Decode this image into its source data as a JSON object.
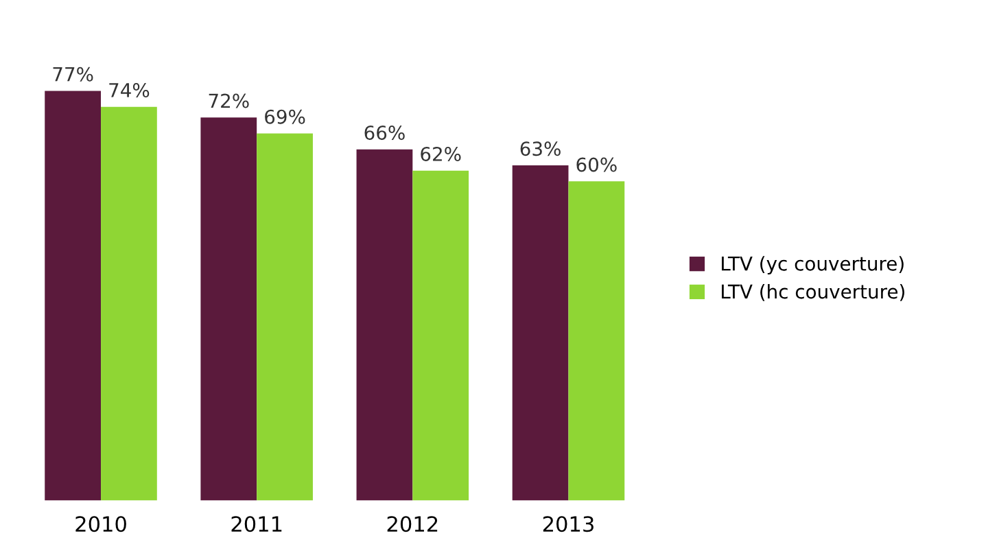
{
  "chart_data": {
    "type": "bar",
    "categories": [
      "2010",
      "2011",
      "2012",
      "2013"
    ],
    "series": [
      {
        "name": "LTV (yc couverture)",
        "color": "#5b1a3c",
        "values": [
          77,
          72,
          66,
          63
        ],
        "value_labels": [
          "77%",
          "72%",
          "66%",
          "63%"
        ]
      },
      {
        "name": "LTV (hc couverture)",
        "color": "#8fd634",
        "values": [
          74,
          69,
          62,
          60
        ],
        "value_labels": [
          "74%",
          "69%",
          "62%",
          "60%"
        ]
      }
    ],
    "legend": "right",
    "grid": false,
    "tick_labels": "x"
  }
}
